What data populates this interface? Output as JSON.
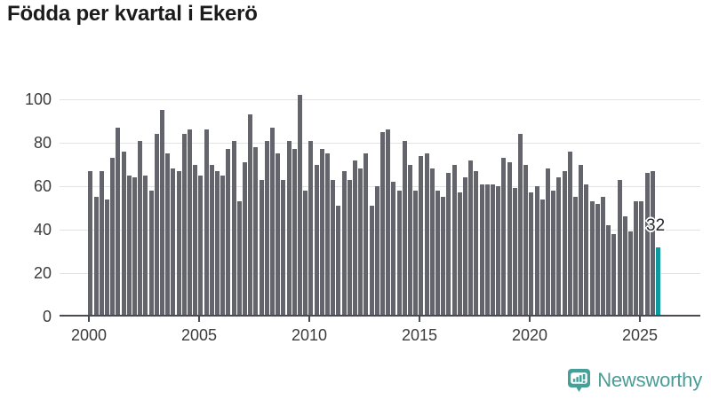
{
  "title": "Födda per kvartal i Ekerö",
  "annotation": {
    "label": "32"
  },
  "watermark": {
    "brand": "Newsworthy"
  },
  "colors": {
    "bar": "#64646c",
    "highlight": "#0d9ba1",
    "grid": "#e3e3e4",
    "axis": "#4a4a52",
    "logo": "#45a09a",
    "title_text": "#1b1b1b",
    "tick_text": "#3c3c3c"
  },
  "chart_data": {
    "type": "bar",
    "title": "Födda per kvartal i Ekerö",
    "frequency": "quarterly",
    "x_range": "2000-Q1 to 2025-Q4",
    "x_tick_labels": [
      "2000",
      "2005",
      "2010",
      "2015",
      "2020",
      "2025"
    ],
    "y_ticks": [
      0,
      20,
      40,
      60,
      80,
      100
    ],
    "ylim": [
      0,
      102
    ],
    "grid": "horizontal",
    "legend": "none",
    "highlight_last_bar": {
      "value": 32,
      "color": "#0d9ba1",
      "label": "32"
    },
    "values": [
      67,
      55,
      67,
      54,
      73,
      87,
      76,
      65,
      64,
      81,
      65,
      58,
      84,
      95,
      75,
      68,
      67,
      84,
      86,
      70,
      65,
      86,
      70,
      67,
      65,
      77,
      81,
      53,
      71,
      93,
      78,
      63,
      81,
      87,
      75,
      63,
      81,
      77,
      102,
      58,
      81,
      70,
      77,
      75,
      63,
      51,
      67,
      63,
      72,
      68,
      75,
      51,
      60,
      85,
      86,
      62,
      58,
      81,
      70,
      58,
      74,
      75,
      68,
      58,
      55,
      66,
      70,
      57,
      64,
      72,
      67,
      61,
      61,
      61,
      60,
      73,
      71,
      59,
      84,
      70,
      57,
      60,
      54,
      68,
      58,
      64,
      67,
      76,
      55,
      70,
      61,
      53,
      52,
      55,
      42,
      38,
      63,
      46,
      39,
      53,
      53,
      66,
      67,
      32
    ]
  }
}
